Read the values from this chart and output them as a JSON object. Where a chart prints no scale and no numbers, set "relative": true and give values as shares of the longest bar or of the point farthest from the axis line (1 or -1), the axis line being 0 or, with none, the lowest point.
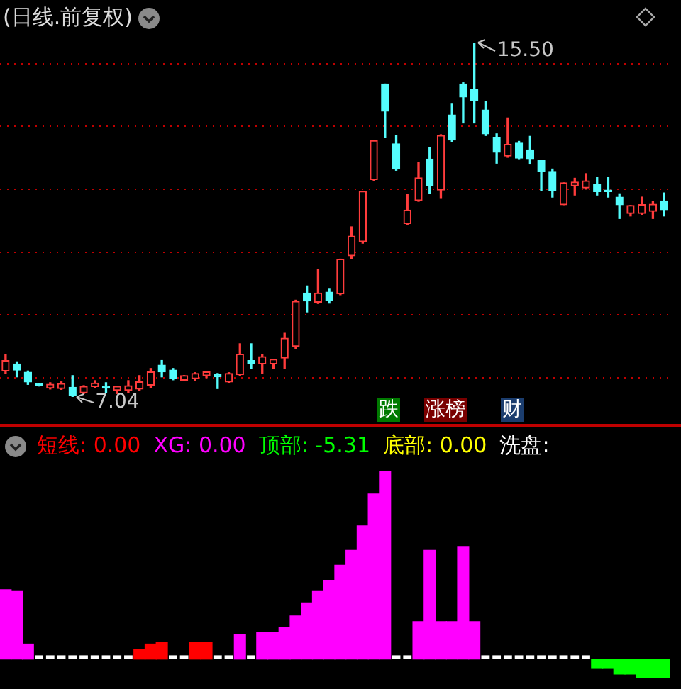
{
  "chart_data": [
    {
      "type": "candlestick",
      "title": "(日线.前复权)",
      "categories": [
        null,
        null,
        null,
        null,
        null,
        null,
        null,
        null,
        null,
        null,
        null,
        null,
        null,
        null,
        null,
        null,
        null,
        null,
        null,
        null,
        null,
        null,
        null,
        null,
        null,
        null,
        null,
        null,
        null,
        null,
        null,
        null,
        null,
        null,
        null,
        null,
        null,
        null,
        null,
        null,
        null,
        null,
        null,
        null,
        null,
        null,
        null,
        null,
        null,
        null,
        null,
        null,
        null,
        null,
        null,
        null,
        null,
        null,
        null,
        null
      ],
      "ohlc": [
        [
          7.66,
          8.06,
          7.6,
          7.91
        ],
        [
          7.83,
          7.88,
          7.52,
          7.68
        ],
        [
          7.63,
          7.66,
          7.34,
          7.4
        ],
        [
          7.33,
          7.35,
          7.3,
          7.32
        ],
        [
          7.25,
          7.38,
          7.23,
          7.34
        ],
        [
          7.24,
          7.4,
          7.22,
          7.36
        ],
        [
          7.27,
          7.55,
          7.04,
          7.07
        ],
        [
          7.14,
          7.31,
          7.12,
          7.29
        ],
        [
          7.29,
          7.43,
          7.26,
          7.37
        ],
        [
          7.29,
          7.38,
          7.14,
          7.25
        ],
        [
          7.2,
          7.3,
          7.12,
          7.29
        ],
        [
          7.2,
          7.43,
          7.14,
          7.31
        ],
        [
          7.23,
          7.55,
          7.19,
          7.4
        ],
        [
          7.32,
          7.72,
          7.27,
          7.64
        ],
        [
          7.8,
          7.91,
          7.52,
          7.64
        ],
        [
          7.68,
          7.72,
          7.45,
          7.48
        ],
        [
          7.44,
          7.55,
          7.43,
          7.55
        ],
        [
          7.48,
          7.62,
          7.44,
          7.6
        ],
        [
          7.55,
          7.65,
          7.5,
          7.64
        ],
        [
          7.57,
          7.6,
          7.24,
          7.52
        ],
        [
          7.4,
          7.62,
          7.38,
          7.6
        ],
        [
          7.57,
          8.31,
          7.55,
          8.06
        ],
        [
          7.91,
          8.31,
          7.72,
          7.83
        ],
        [
          7.83,
          8.06,
          7.6,
          8.0
        ],
        [
          7.83,
          7.94,
          7.72,
          7.94
        ],
        [
          7.97,
          8.56,
          7.72,
          8.44
        ],
        [
          8.25,
          9.35,
          8.2,
          9.32
        ],
        [
          9.52,
          9.69,
          9.07,
          9.33
        ],
        [
          9.3,
          10.09,
          9.27,
          9.52
        ],
        [
          9.54,
          9.63,
          9.28,
          9.35
        ],
        [
          9.5,
          10.33,
          9.48,
          10.33
        ],
        [
          10.41,
          11.1,
          10.35,
          10.88
        ],
        [
          10.75,
          11.95,
          10.71,
          11.95
        ],
        [
          12.23,
          13.17,
          12.2,
          13.16
        ],
        [
          14.51,
          14.51,
          13.24,
          13.86
        ],
        [
          13.08,
          13.28,
          12.45,
          12.48
        ],
        [
          11.18,
          11.87,
          11.16,
          11.5
        ],
        [
          11.73,
          12.63,
          11.71,
          12.27
        ],
        [
          12.72,
          13.0,
          11.9,
          12.09
        ],
        [
          11.98,
          13.3,
          11.78,
          13.28
        ],
        [
          13.77,
          14.03,
          13.13,
          13.17
        ],
        [
          14.51,
          14.54,
          13.58,
          14.2
        ],
        [
          14.39,
          15.5,
          13.58,
          14.11
        ],
        [
          13.89,
          14.09,
          13.28,
          13.32
        ],
        [
          13.24,
          13.32,
          12.62,
          12.88
        ],
        [
          12.79,
          13.7,
          12.76,
          13.07
        ],
        [
          13.1,
          13.14,
          12.71,
          12.74
        ],
        [
          12.94,
          13.26,
          12.6,
          12.71
        ],
        [
          12.68,
          12.68,
          11.97,
          12.42
        ],
        [
          12.42,
          12.48,
          11.81,
          11.97
        ],
        [
          11.63,
          12.15,
          11.63,
          12.15
        ],
        [
          12.08,
          12.26,
          11.86,
          12.17
        ],
        [
          12.03,
          12.37,
          12.0,
          12.2
        ],
        [
          12.11,
          12.28,
          11.86,
          11.94
        ],
        [
          11.98,
          12.28,
          11.81,
          11.94
        ],
        [
          11.81,
          11.89,
          11.3,
          11.63
        ],
        [
          11.42,
          11.61,
          11.36,
          11.61
        ],
        [
          11.42,
          11.81,
          11.39,
          11.63
        ],
        [
          11.47,
          11.7,
          11.3,
          11.64
        ],
        [
          11.72,
          11.91,
          11.36,
          11.51
        ]
      ],
      "yticks": [
        {
          "value": 7.5,
          "label": null
        },
        {
          "value": 9,
          "label": null
        },
        {
          "value": 10.5,
          "label": null
        },
        {
          "value": 12,
          "label": null
        },
        {
          "value": 13.5,
          "label": null
        },
        {
          "value": 15,
          "label": null
        }
      ],
      "grid": true,
      "annotations": [
        "15.50",
        "7.04",
        "跌",
        "涨榜",
        "财"
      ]
    },
    {
      "type": "bar",
      "relative": true,
      "stacked": true,
      "legend": "top",
      "categories": [
        null,
        null,
        null,
        null,
        null,
        null,
        null,
        null,
        null,
        null,
        null,
        null,
        null,
        null,
        null,
        null,
        null,
        null,
        null,
        null,
        null,
        null,
        null,
        null,
        null,
        null,
        null,
        null,
        null,
        null,
        null,
        null,
        null,
        null,
        null,
        null,
        null,
        null,
        null,
        null,
        null,
        null,
        null,
        null,
        null,
        null,
        null,
        null,
        null,
        null,
        null,
        null,
        null,
        null,
        null,
        null,
        null,
        null,
        null,
        null
      ],
      "series": [
        {
          "name": "短线: 0.00",
          "color": "#ff0000",
          "values": [
            null,
            null,
            null,
            null,
            null,
            null,
            null,
            null,
            null,
            null,
            null,
            null,
            0.05,
            0.08,
            0.09,
            null,
            null,
            0.09,
            0.09,
            null,
            null,
            null,
            null,
            null,
            null,
            null,
            null,
            null,
            null,
            null,
            null,
            null,
            null,
            null,
            null,
            null,
            null,
            null,
            null,
            null,
            null,
            null,
            null,
            null,
            null,
            null,
            null,
            null,
            null,
            null,
            null,
            null,
            null,
            null,
            null,
            null,
            null,
            null,
            null,
            null
          ]
        },
        {
          "name": "XG: 0.00",
          "color": "#ff00ff",
          "values": [
            0.37,
            0.36,
            0.08,
            null,
            null,
            null,
            null,
            null,
            null,
            null,
            null,
            null,
            null,
            null,
            null,
            null,
            null,
            null,
            null,
            null,
            null,
            0.13,
            null,
            0.14,
            0.14,
            0.17,
            0.23,
            0.3,
            0.36,
            0.42,
            0.5,
            0.58,
            0.71,
            0.88,
            1,
            null,
            null,
            0.2,
            0.58,
            0.2,
            0.2,
            0.6,
            0.2,
            null,
            null,
            null,
            null,
            null,
            null,
            null,
            null,
            null,
            null,
            null,
            null,
            null,
            null,
            null,
            null,
            null
          ]
        },
        {
          "name": "顶部: -5.31",
          "color": "#00ff00",
          "values": [
            null,
            null,
            null,
            null,
            null,
            null,
            null,
            null,
            null,
            null,
            null,
            null,
            null,
            null,
            null,
            null,
            null,
            null,
            null,
            null,
            null,
            null,
            null,
            null,
            null,
            null,
            null,
            null,
            null,
            null,
            null,
            null,
            null,
            null,
            null,
            null,
            null,
            null,
            null,
            null,
            null,
            null,
            null,
            null,
            null,
            null,
            null,
            null,
            null,
            null,
            null,
            null,
            null,
            -0.05,
            -0.05,
            -0.08,
            -0.08,
            -0.1,
            -0.1,
            -0.1
          ]
        },
        {
          "name": "底部: 0.00",
          "color": "#ffff00",
          "values": [
            null,
            null,
            null,
            null,
            null,
            null,
            null,
            null,
            null,
            null,
            null,
            null,
            null,
            null,
            null,
            null,
            null,
            null,
            null,
            null,
            null,
            null,
            null,
            null,
            null,
            null,
            null,
            null,
            null,
            null,
            null,
            null,
            null,
            null,
            null,
            null,
            null,
            null,
            null,
            null,
            null,
            null,
            null,
            null,
            null,
            null,
            null,
            null,
            null,
            null,
            null,
            null,
            null,
            null,
            null,
            null,
            null,
            null,
            null,
            null
          ]
        },
        {
          "name": "洗盘:",
          "color": "#ffffff",
          "values": [
            null,
            null,
            null,
            0.02,
            0.02,
            0.02,
            0.02,
            0.02,
            0.02,
            0.02,
            0.02,
            0.02,
            null,
            null,
            null,
            0.02,
            0.02,
            null,
            null,
            0.02,
            0.02,
            null,
            0.02,
            null,
            null,
            null,
            null,
            null,
            null,
            null,
            null,
            null,
            null,
            null,
            null,
            0.02,
            0.02,
            null,
            null,
            null,
            null,
            null,
            null,
            0.02,
            0.02,
            0.02,
            0.02,
            0.02,
            0.02,
            0.02,
            0.02,
            0.02,
            0.02,
            null,
            null,
            null,
            null,
            null,
            null,
            null
          ]
        }
      ]
    }
  ]
}
